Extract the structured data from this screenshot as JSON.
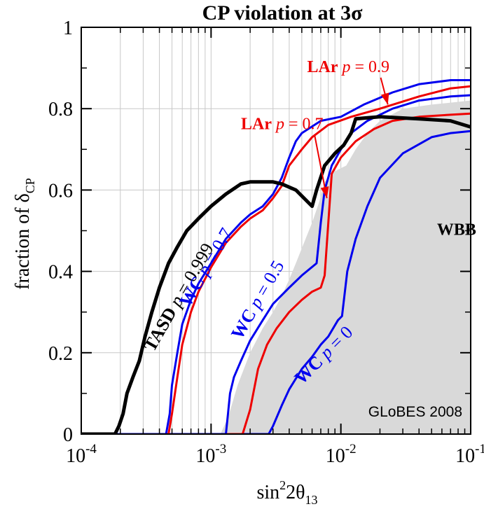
{
  "chart_data": {
    "type": "line",
    "title": "CP violation at 3σ",
    "xlabel": {
      "base": "sin",
      "sup": "2",
      "mid": "2θ",
      "sub": "13"
    },
    "ylabel": {
      "text": "fraction of  δ",
      "sub": "CP"
    },
    "x_scale": "log",
    "xlim": [
      0.0001,
      0.1
    ],
    "ylim": [
      0,
      1
    ],
    "x_ticks": [
      {
        "value": 0.0001,
        "base": "10",
        "exp": "-4"
      },
      {
        "value": 0.001,
        "base": "10",
        "exp": "-3"
      },
      {
        "value": 0.01,
        "base": "10",
        "exp": "-2"
      },
      {
        "value": 0.1,
        "base": "10",
        "exp": "-1"
      }
    ],
    "y_ticks": [
      {
        "value": 0,
        "label": "0"
      },
      {
        "value": 0.2,
        "label": "0.2"
      },
      {
        "value": 0.4,
        "label": "0.4"
      },
      {
        "value": 0.6,
        "label": "0.6"
      },
      {
        "value": 0.8,
        "label": "0.8"
      },
      {
        "value": 1,
        "label": "1"
      }
    ],
    "grid": true,
    "credit": "GLoBES 2008",
    "colors": {
      "wc": "#0000ee",
      "lar": "#ee0000",
      "tasd": "#000000",
      "wbb_fill": "#d9d9d9",
      "grid": "#c8c8c8"
    },
    "area": {
      "name": "WBB",
      "points": [
        [
          0.00118,
          0
        ],
        [
          0.00135,
          0.04
        ],
        [
          0.0016,
          0.12
        ],
        [
          0.002,
          0.2
        ],
        [
          0.0025,
          0.26
        ],
        [
          0.003,
          0.3
        ],
        [
          0.0035,
          0.34
        ],
        [
          0.004,
          0.38
        ],
        [
          0.0045,
          0.42
        ],
        [
          0.0052,
          0.47
        ],
        [
          0.006,
          0.52
        ],
        [
          0.0068,
          0.57
        ],
        [
          0.0075,
          0.62
        ],
        [
          0.0085,
          0.64
        ],
        [
          0.0095,
          0.65
        ],
        [
          0.011,
          0.66
        ],
        [
          0.013,
          0.7
        ],
        [
          0.016,
          0.74
        ],
        [
          0.02,
          0.77
        ],
        [
          0.03,
          0.8
        ],
        [
          0.05,
          0.81
        ],
        [
          0.1,
          0.82
        ],
        [
          0.1,
          0
        ]
      ]
    },
    "series": [
      {
        "key": "wc0",
        "name": "WC p = 0",
        "color": "#0000ee",
        "width": 3,
        "points": [
          [
            0.0001,
            0
          ],
          [
            0.00278,
            0
          ],
          [
            0.003,
            0.02
          ],
          [
            0.0035,
            0.07
          ],
          [
            0.004,
            0.11
          ],
          [
            0.005,
            0.16
          ],
          [
            0.006,
            0.19
          ],
          [
            0.007,
            0.22
          ],
          [
            0.008,
            0.24
          ],
          [
            0.0095,
            0.28
          ],
          [
            0.0102,
            0.29
          ],
          [
            0.0112,
            0.4
          ],
          [
            0.013,
            0.48
          ],
          [
            0.016,
            0.56
          ],
          [
            0.02,
            0.63
          ],
          [
            0.03,
            0.69
          ],
          [
            0.05,
            0.73
          ],
          [
            0.07,
            0.74
          ],
          [
            0.1,
            0.745
          ]
        ]
      },
      {
        "key": "lar07",
        "name": "LAr p = 0.7",
        "color": "#ee0000",
        "width": 3,
        "points": [
          [
            0.0001,
            0
          ],
          [
            0.00175,
            0
          ],
          [
            0.002,
            0.06
          ],
          [
            0.0023,
            0.16
          ],
          [
            0.0027,
            0.22
          ],
          [
            0.0032,
            0.26
          ],
          [
            0.004,
            0.3
          ],
          [
            0.005,
            0.33
          ],
          [
            0.006,
            0.35
          ],
          [
            0.007,
            0.36
          ],
          [
            0.0075,
            0.39
          ],
          [
            0.0085,
            0.64
          ],
          [
            0.01,
            0.68
          ],
          [
            0.013,
            0.72
          ],
          [
            0.018,
            0.75
          ],
          [
            0.025,
            0.77
          ],
          [
            0.04,
            0.78
          ],
          [
            0.07,
            0.785
          ],
          [
            0.1,
            0.788
          ]
        ]
      },
      {
        "key": "wc05",
        "name": "WC p = 0.5",
        "color": "#0000ee",
        "width": 3,
        "points": [
          [
            0.0001,
            0
          ],
          [
            0.0013,
            0
          ],
          [
            0.00135,
            0.05
          ],
          [
            0.0014,
            0.1
          ],
          [
            0.0015,
            0.14
          ],
          [
            0.0017,
            0.18
          ],
          [
            0.002,
            0.23
          ],
          [
            0.0025,
            0.28
          ],
          [
            0.003,
            0.32
          ],
          [
            0.004,
            0.36
          ],
          [
            0.005,
            0.39
          ],
          [
            0.0065,
            0.42
          ],
          [
            0.007,
            0.52
          ],
          [
            0.0075,
            0.6
          ],
          [
            0.0085,
            0.66
          ],
          [
            0.01,
            0.7
          ],
          [
            0.012,
            0.74
          ],
          [
            0.016,
            0.77
          ],
          [
            0.025,
            0.8
          ],
          [
            0.04,
            0.82
          ],
          [
            0.07,
            0.83
          ],
          [
            0.1,
            0.833
          ]
        ]
      },
      {
        "key": "lar09",
        "name": "LAr p = 0.9",
        "color": "#ee0000",
        "width": 3,
        "points": [
          [
            0.0001,
            0
          ],
          [
            0.00047,
            0
          ],
          [
            0.0005,
            0.05
          ],
          [
            0.00055,
            0.14
          ],
          [
            0.0006,
            0.22
          ],
          [
            0.0007,
            0.3
          ],
          [
            0.0008,
            0.35
          ],
          [
            0.001,
            0.41
          ],
          [
            0.0013,
            0.47
          ],
          [
            0.0017,
            0.51
          ],
          [
            0.002,
            0.53
          ],
          [
            0.0025,
            0.55
          ],
          [
            0.003,
            0.58
          ],
          [
            0.0035,
            0.61
          ],
          [
            0.004,
            0.66
          ],
          [
            0.005,
            0.7
          ],
          [
            0.006,
            0.73
          ],
          [
            0.008,
            0.76
          ],
          [
            0.012,
            0.78
          ],
          [
            0.02,
            0.8
          ],
          [
            0.04,
            0.83
          ],
          [
            0.07,
            0.85
          ],
          [
            0.1,
            0.855
          ]
        ]
      },
      {
        "key": "wc07",
        "name": "WC p = 0.7",
        "color": "#0000ee",
        "width": 3,
        "points": [
          [
            0.0001,
            0
          ],
          [
            0.00045,
            0
          ],
          [
            0.00048,
            0.05
          ],
          [
            0.0005,
            0.12
          ],
          [
            0.00055,
            0.2
          ],
          [
            0.0006,
            0.27
          ],
          [
            0.0007,
            0.33
          ],
          [
            0.0008,
            0.37
          ],
          [
            0.001,
            0.42
          ],
          [
            0.0013,
            0.48
          ],
          [
            0.0017,
            0.52
          ],
          [
            0.002,
            0.54
          ],
          [
            0.0025,
            0.56
          ],
          [
            0.003,
            0.59
          ],
          [
            0.0035,
            0.63
          ],
          [
            0.004,
            0.68
          ],
          [
            0.0045,
            0.72
          ],
          [
            0.005,
            0.74
          ],
          [
            0.007,
            0.77
          ],
          [
            0.01,
            0.78
          ],
          [
            0.015,
            0.81
          ],
          [
            0.025,
            0.84
          ],
          [
            0.04,
            0.86
          ],
          [
            0.07,
            0.87
          ],
          [
            0.1,
            0.87
          ]
        ]
      },
      {
        "key": "tasd",
        "name": "TASD p = 0.999",
        "color": "#000000",
        "width": 5,
        "points": [
          [
            0.0001,
            0
          ],
          [
            0.000182,
            0
          ],
          [
            0.000195,
            0.02
          ],
          [
            0.00021,
            0.05
          ],
          [
            0.000225,
            0.1
          ],
          [
            0.00025,
            0.14
          ],
          [
            0.00028,
            0.18
          ],
          [
            0.00031,
            0.24
          ],
          [
            0.00035,
            0.3
          ],
          [
            0.0004,
            0.36
          ],
          [
            0.00047,
            0.42
          ],
          [
            0.00055,
            0.46
          ],
          [
            0.00065,
            0.5
          ],
          [
            0.0008,
            0.53
          ],
          [
            0.001,
            0.56
          ],
          [
            0.0013,
            0.59
          ],
          [
            0.0017,
            0.615
          ],
          [
            0.002,
            0.62
          ],
          [
            0.0025,
            0.62
          ],
          [
            0.003,
            0.62
          ],
          [
            0.0035,
            0.615
          ],
          [
            0.0045,
            0.6
          ],
          [
            0.006,
            0.56
          ],
          [
            0.0065,
            0.6
          ],
          [
            0.0075,
            0.66
          ],
          [
            0.009,
            0.69
          ],
          [
            0.0105,
            0.71
          ],
          [
            0.012,
            0.74
          ],
          [
            0.013,
            0.775
          ],
          [
            0.02,
            0.78
          ],
          [
            0.04,
            0.775
          ],
          [
            0.07,
            0.77
          ],
          [
            0.1,
            0.755
          ]
        ]
      }
    ],
    "labels": [
      {
        "key": "tasd",
        "bold": "TASD",
        "italic": "p",
        "rest": " = 0.999",
        "color": "#000000",
        "x": 0.00036,
        "y": 0.2,
        "angle": -60,
        "size": 26
      },
      {
        "key": "wc07",
        "bold": "WC",
        "italic": "p",
        "rest": " = 0.7",
        "color": "#0000ee",
        "x": 0.00068,
        "y": 0.31,
        "angle": -60,
        "size": 26
      },
      {
        "key": "wc05",
        "bold": "WC",
        "italic": "p",
        "rest": " = 0.5",
        "color": "#0000ee",
        "x": 0.0017,
        "y": 0.23,
        "angle": -60,
        "size": 26
      },
      {
        "key": "wc0",
        "bold": "WC",
        "italic": "p",
        "rest": " = 0",
        "color": "#0000ee",
        "x": 0.005,
        "y": 0.12,
        "angle": -45,
        "size": 26
      },
      {
        "key": "lar07",
        "bold": "LAr",
        "italic": "p",
        "rest": " = 0.7",
        "color": "#ee0000",
        "x": 0.0017,
        "y": 0.75,
        "angle": 0,
        "size": 24,
        "arrow_to": [
          0.0078,
          0.58
        ]
      },
      {
        "key": "lar09",
        "bold": "LAr",
        "italic": "p",
        "rest": " = 0.9",
        "color": "#ee0000",
        "x": 0.0055,
        "y": 0.89,
        "angle": 0,
        "size": 24,
        "arrow_to": [
          0.023,
          0.81
        ]
      },
      {
        "key": "wbb",
        "bold": "WBB",
        "italic": "",
        "rest": "",
        "color": "#000000",
        "x": 0.055,
        "y": 0.49,
        "angle": 0,
        "size": 24
      }
    ]
  }
}
